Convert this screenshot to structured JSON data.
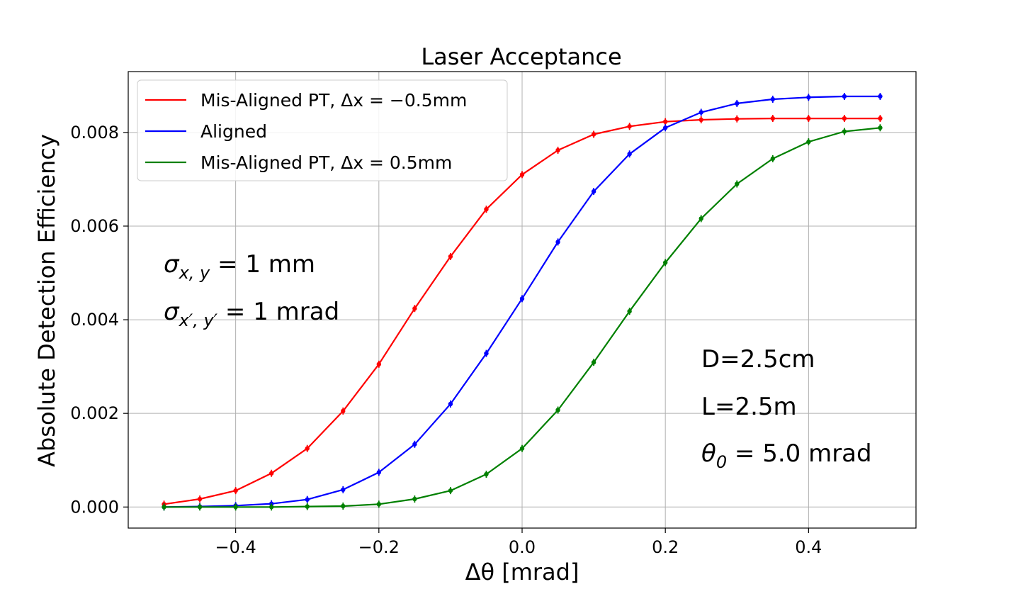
{
  "chart_data": {
    "type": "line",
    "title": "Laser Acceptance",
    "xlabel": "Δθ [mrad]",
    "ylabel": "Absolute Detection Efficiency",
    "xlim": [
      -0.55,
      0.55
    ],
    "ylim": [
      -0.00045,
      0.0093
    ],
    "x_ticks": [
      -0.4,
      -0.2,
      0.0,
      0.2,
      0.4
    ],
    "x_tick_labels": [
      "−0.4",
      "−0.2",
      "0.0",
      "0.2",
      "0.4"
    ],
    "y_ticks": [
      0.0,
      0.002,
      0.004,
      0.006,
      0.008
    ],
    "y_tick_labels": [
      "0.000",
      "0.002",
      "0.004",
      "0.006",
      "0.008"
    ],
    "grid": true,
    "legend_position": "top-left",
    "x": [
      -0.5,
      -0.45,
      -0.4,
      -0.35,
      -0.3,
      -0.25,
      -0.2,
      -0.15,
      -0.1,
      -0.05,
      0.0,
      0.05,
      0.1,
      0.15,
      0.2,
      0.25,
      0.3,
      0.35,
      0.4,
      0.45,
      0.5
    ],
    "series": [
      {
        "name": "Mis-Aligned PT, Δx = −0.5mm",
        "color": "#ff0000",
        "values": [
          6e-05,
          0.00017,
          0.00035,
          0.00072,
          0.00125,
          0.00205,
          0.00305,
          0.00424,
          0.00535,
          0.00636,
          0.0071,
          0.00762,
          0.00796,
          0.00813,
          0.00823,
          0.00827,
          0.00829,
          0.0083,
          0.0083,
          0.0083,
          0.0083
        ]
      },
      {
        "name": "Aligned",
        "color": "#0000ff",
        "values": [
          0.0,
          1e-05,
          3e-05,
          7e-05,
          0.00016,
          0.00037,
          0.00074,
          0.00134,
          0.0022,
          0.00328,
          0.00445,
          0.00566,
          0.00674,
          0.00754,
          0.0081,
          0.00843,
          0.00862,
          0.00871,
          0.00875,
          0.00877,
          0.00877
        ]
      },
      {
        "name": "Mis-Aligned PT, Δx = 0.5mm",
        "color": "#008000",
        "values": [
          0.0,
          0.0,
          0.0,
          0.0,
          1e-05,
          2e-05,
          6e-05,
          0.00017,
          0.00035,
          0.0007,
          0.00125,
          0.00207,
          0.00309,
          0.00418,
          0.00522,
          0.00616,
          0.0069,
          0.00744,
          0.0078,
          0.00802,
          0.0081
        ]
      }
    ],
    "annotations": [
      {
        "id": "sigma-xy",
        "text": "σx, y = 1 mm",
        "main": "σ",
        "sub": "x, y",
        "rest": " = 1 mm"
      },
      {
        "id": "sigma-xpyp",
        "text": "σx′, y′ = 1 mrad",
        "main": "σ",
        "sub": "x′, y′",
        "rest": " = 1 mrad"
      },
      {
        "id": "d",
        "text": "D=2.5cm"
      },
      {
        "id": "l",
        "text": "L=2.5m"
      },
      {
        "id": "theta0",
        "text": "θ0 = 5.0 mrad",
        "main": "θ",
        "sub": "0",
        "rest": " = 5.0 mrad"
      }
    ]
  }
}
